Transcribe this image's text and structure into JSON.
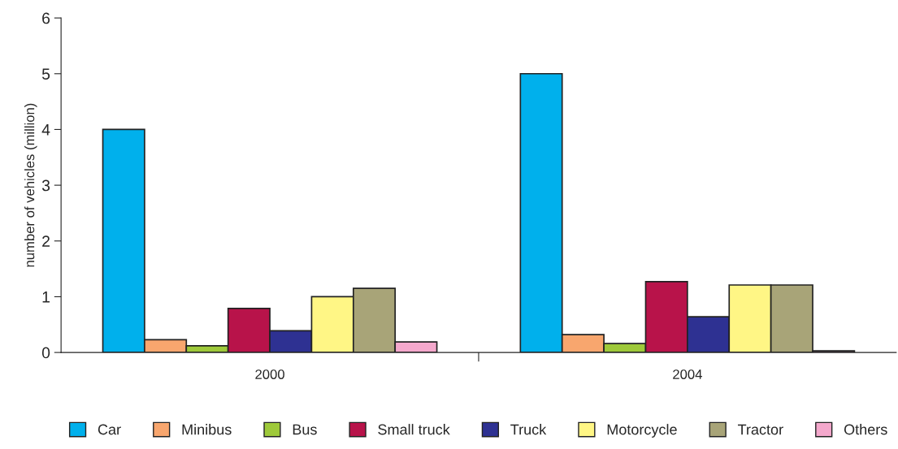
{
  "chart_data": {
    "type": "bar",
    "ylabel": "number of vehicles (million)",
    "categories": [
      "2000",
      "2004"
    ],
    "series": [
      {
        "name": "Car",
        "color": "#00b0ec",
        "values": [
          4.0,
          5.0
        ]
      },
      {
        "name": "Minibus",
        "color": "#f8a66e",
        "values": [
          0.23,
          0.32
        ]
      },
      {
        "name": "Bus",
        "color": "#9ec93a",
        "values": [
          0.12,
          0.16
        ]
      },
      {
        "name": "Small truck",
        "color": "#b8134a",
        "values": [
          0.79,
          1.27
        ]
      },
      {
        "name": "Truck",
        "color": "#2e3192",
        "values": [
          0.39,
          0.64
        ]
      },
      {
        "name": "Motorcycle",
        "color": "#fff685",
        "values": [
          1.0,
          1.21
        ]
      },
      {
        "name": "Tractor",
        "color": "#a8a478",
        "values": [
          1.15,
          1.21
        ]
      },
      {
        "name": "Others",
        "color": "#f4a8cc",
        "values": [
          0.19,
          0.03
        ]
      }
    ],
    "ylim": [
      0,
      6
    ],
    "yticks": [
      0,
      1,
      2,
      3,
      4,
      5,
      6
    ],
    "grid": false,
    "legend": "bottom"
  }
}
